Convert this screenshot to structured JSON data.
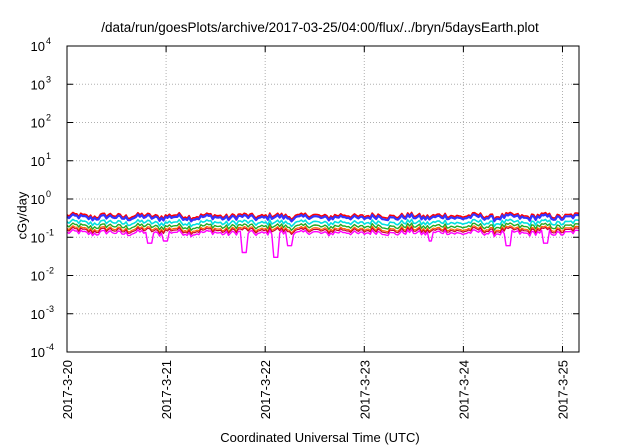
{
  "chart_data": {
    "type": "line",
    "title": "/data/run/goesPlots/archive/2017-03-25/04:00/flux/../bryn/5daysEarth.plot",
    "xlabel": "Coordinated Universal Time (UTC)",
    "ylabel": "cGy/day",
    "yscale": "log",
    "ylim": [
      0.0001,
      10000
    ],
    "yticks": [
      {
        "value": 0.0001,
        "base": "10",
        "exp": "-4"
      },
      {
        "value": 0.001,
        "base": "10",
        "exp": "-3"
      },
      {
        "value": 0.01,
        "base": "10",
        "exp": "-2"
      },
      {
        "value": 0.1,
        "base": "10",
        "exp": "-1"
      },
      {
        "value": 1,
        "base": "10",
        "exp": "0"
      },
      {
        "value": 10,
        "base": "10",
        "exp": "1"
      },
      {
        "value": 100,
        "base": "10",
        "exp": "2"
      },
      {
        "value": 1000,
        "base": "10",
        "exp": "3"
      },
      {
        "value": 10000,
        "base": "10",
        "exp": "4"
      }
    ],
    "xlim": [
      "2017-03-20T00:00",
      "2017-03-25T04:00"
    ],
    "xticks": [
      {
        "value": "2017-03-20T00:00",
        "label": "2017-3-20"
      },
      {
        "value": "2017-03-21T00:00",
        "label": "2017-3-21"
      },
      {
        "value": "2017-03-22T00:00",
        "label": "2017-3-22"
      },
      {
        "value": "2017-03-23T00:00",
        "label": "2017-3-23"
      },
      {
        "value": "2017-03-24T00:00",
        "label": "2017-3-24"
      },
      {
        "value": "2017-03-25T00:00",
        "label": "2017-3-25"
      }
    ],
    "grid": true,
    "series": [
      {
        "color": "#ff0000",
        "baseline": 0.38,
        "dips": [],
        "width": 1.6
      },
      {
        "color": "#3333ff",
        "baseline": 0.34,
        "dips": [],
        "width": 2.2
      },
      {
        "color": "#00e0e0",
        "baseline": 0.25,
        "dips": [],
        "width": 1.6
      },
      {
        "color": "#22aa22",
        "baseline": 0.2,
        "dips": [],
        "width": 1.4
      },
      {
        "color": "#ff6600",
        "baseline": 0.17,
        "dips": [],
        "width": 1.2
      },
      {
        "color": "#cc0033",
        "baseline": 0.155,
        "dips": [],
        "width": 1.2
      },
      {
        "color": "#ff00ff",
        "baseline": 0.135,
        "dips": [
          {
            "t": "2017-03-20T20:00",
            "v": 0.07
          },
          {
            "t": "2017-03-21T00:00",
            "v": 0.08
          },
          {
            "t": "2017-03-21T19:00",
            "v": 0.04
          },
          {
            "t": "2017-03-22T02:30",
            "v": 0.03
          },
          {
            "t": "2017-03-22T06:00",
            "v": 0.06
          },
          {
            "t": "2017-03-23T16:00",
            "v": 0.08
          },
          {
            "t": "2017-03-24T11:00",
            "v": 0.06
          },
          {
            "t": "2017-03-24T20:00",
            "v": 0.07
          }
        ],
        "width": 1.4
      }
    ]
  }
}
